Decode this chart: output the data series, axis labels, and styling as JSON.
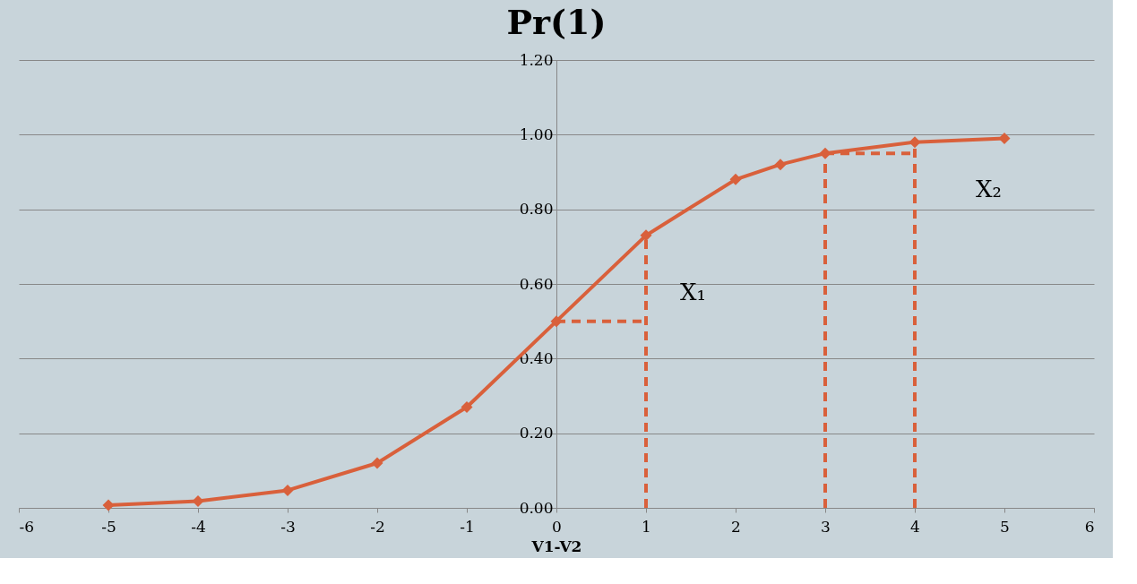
{
  "chart_data": {
    "type": "line",
    "title": "Pr(1)",
    "xlabel": "V1-V2",
    "xlim": [
      -6,
      6
    ],
    "xticks": [
      -6,
      -5,
      -4,
      -3,
      -2,
      -1,
      0,
      1,
      2,
      3,
      4,
      5,
      6
    ],
    "ylim": [
      0,
      1.2
    ],
    "yticks": [
      {
        "value": 0,
        "label": "0.00"
      },
      {
        "value": 0.2,
        "label": "0.20"
      },
      {
        "value": 0.4,
        "label": "0.40"
      },
      {
        "value": 0.6,
        "label": "0.60"
      },
      {
        "value": 0.8,
        "label": "0.80"
      },
      {
        "value": 1.0,
        "label": "1.00"
      },
      {
        "value": 1.2,
        "label": "1.20"
      }
    ],
    "grid": "y",
    "series": [
      {
        "color": "#d9603b",
        "marker": "diamond",
        "line_style": "solid",
        "x": [
          -5,
          -4,
          -3,
          -2,
          -1,
          0,
          1,
          2,
          2.5,
          3,
          4,
          5
        ],
        "values": [
          0.007,
          0.018,
          0.047,
          0.12,
          0.27,
          0.5,
          0.73,
          0.88,
          0.92,
          0.95,
          0.98,
          0.99
        ]
      },
      {
        "color": "#d9603b",
        "marker": "none",
        "line_style": "dashed",
        "x": [
          0,
          1
        ],
        "values": [
          0.5,
          0.5
        ]
      },
      {
        "color": "#d9603b",
        "marker": "none",
        "line_style": "dashed",
        "x": [
          1,
          1
        ],
        "values": [
          0,
          0.73
        ]
      },
      {
        "color": "#d9603b",
        "marker": "none",
        "line_style": "dashed",
        "x": [
          3,
          3
        ],
        "values": [
          0,
          0.95
        ]
      },
      {
        "color": "#d9603b",
        "marker": "none",
        "line_style": "dashed",
        "x": [
          4,
          4
        ],
        "values": [
          0,
          0.98
        ]
      },
      {
        "color": "#d9603b",
        "marker": "none",
        "line_style": "dashed",
        "x": [
          3,
          4
        ],
        "values": [
          0.95,
          0.95
        ]
      }
    ],
    "annotations": [
      "X₁",
      "X₂"
    ]
  }
}
